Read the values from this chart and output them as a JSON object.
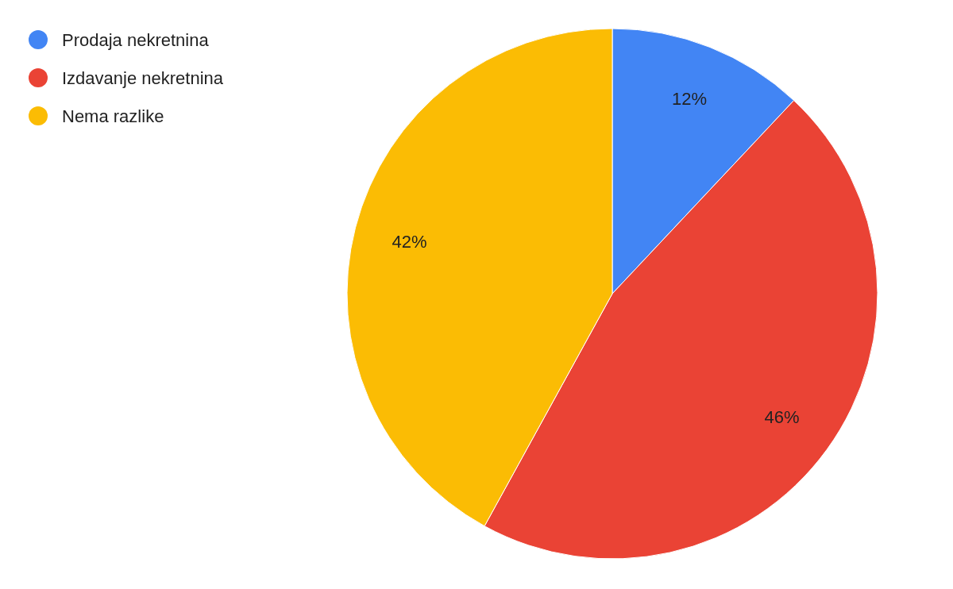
{
  "chart_data": {
    "type": "pie",
    "categories": [
      "Prodaja nekretnina",
      "Izdavanje nekretnina",
      "Nema razlike"
    ],
    "values": [
      12,
      46,
      42
    ],
    "colors": [
      "#4285f4",
      "#ea4335",
      "#fbbc04"
    ],
    "value_labels": [
      "12%",
      "46%",
      "42%"
    ],
    "legend": "top left"
  }
}
